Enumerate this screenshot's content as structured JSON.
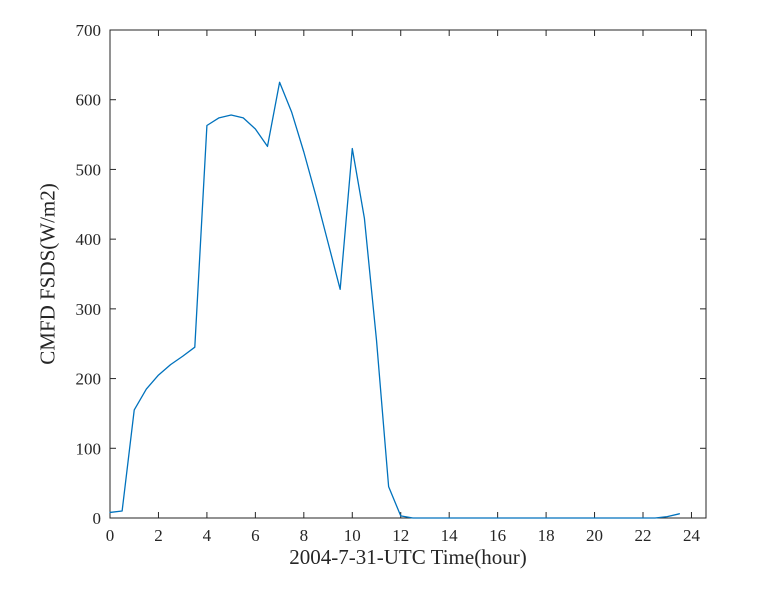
{
  "figure": {
    "background": "#ffffff",
    "xlabel": "2004-7-31-UTC Time(hour)",
    "ylabel": "CMFD FSDS(W/m2)"
  },
  "chart_data": {
    "type": "line",
    "title": "",
    "xlabel": "2004-7-31-UTC Time(hour)",
    "ylabel": "CMFD FSDS(W/m2)",
    "xlim": [
      0,
      24.6
    ],
    "ylim": [
      0,
      700
    ],
    "xticks": [
      0,
      2,
      4,
      6,
      8,
      10,
      12,
      14,
      16,
      18,
      20,
      22,
      24
    ],
    "yticks": [
      0,
      100,
      200,
      300,
      400,
      500,
      600,
      700
    ],
    "grid": false,
    "legend_position": "none",
    "line_color": "#0072BD",
    "axis_color": "#262626",
    "x": [
      0,
      0.5,
      1,
      1.5,
      2,
      2.5,
      3,
      3.5,
      4,
      4.5,
      5,
      5.5,
      6,
      6.5,
      7,
      7.5,
      8,
      8.5,
      9,
      9.5,
      10,
      10.5,
      11,
      11.5,
      12,
      12.5,
      13,
      13.5,
      14,
      14.5,
      15,
      15.5,
      16,
      16.5,
      17,
      17.5,
      18,
      18.5,
      19,
      19.5,
      20,
      20.5,
      21,
      21.5,
      22,
      22.5,
      23,
      23.5
    ],
    "series": [
      {
        "name": "CMFD FSDS",
        "values": [
          8,
          10,
          155,
          185,
          205,
          220,
          232,
          245,
          563,
          574,
          578,
          574,
          558,
          533,
          625,
          582,
          525,
          462,
          395,
          328,
          530,
          430,
          255,
          45,
          3,
          0,
          0,
          0,
          0,
          0,
          0,
          0,
          0,
          0,
          0,
          0,
          0,
          0,
          0,
          0,
          0,
          0,
          0,
          0,
          0,
          0,
          2,
          6
        ]
      }
    ]
  }
}
